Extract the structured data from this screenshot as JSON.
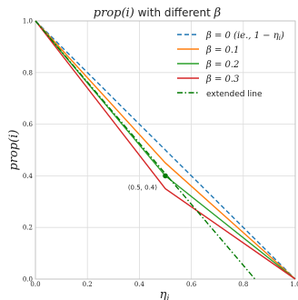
{
  "chart_data": {
    "type": "line",
    "title": "prop(i) with different β",
    "title_parts": {
      "left": "prop(i)",
      "middle": " with different ",
      "right": "β"
    },
    "xlabel": "η",
    "xlabel_sub": "i",
    "ylabel": "prop(i)",
    "xlim": [
      0.0,
      1.0
    ],
    "ylim": [
      0.0,
      1.0
    ],
    "xticks": [
      "0.0",
      "0.2",
      "0.4",
      "0.6",
      "0.8",
      "1.0"
    ],
    "yticks": [
      "0.0",
      "0.2",
      "0.4",
      "0.6",
      "0.8",
      "1.0"
    ],
    "grid": true,
    "legend_position": "top-right",
    "series": [
      {
        "name": "β = 0 (ie., 1 − ηᵢ)",
        "legend_parts": [
          "β = 0 (",
          "ie.",
          ", 1 − η",
          "i",
          ")"
        ],
        "color": "#1f77b4",
        "dash": "dashed",
        "x": [
          0.0,
          1.0
        ],
        "y": [
          1.0,
          0.0
        ]
      },
      {
        "name": "β = 0.1",
        "color": "#ff7f0e",
        "dash": "solid",
        "x": [
          0.0,
          0.5,
          1.0
        ],
        "y": [
          1.0,
          0.45,
          0.0
        ]
      },
      {
        "name": "β = 0.2",
        "color": "#2ca02c",
        "dash": "solid",
        "x": [
          0.0,
          0.5,
          1.0
        ],
        "y": [
          1.0,
          0.4,
          0.0
        ]
      },
      {
        "name": "β = 0.3",
        "color": "#d62728",
        "dash": "solid",
        "x": [
          0.0,
          0.5,
          1.0
        ],
        "y": [
          1.0,
          0.35,
          0.0
        ]
      },
      {
        "name": "extended line",
        "color": "#007a00",
        "dash": "dashdot",
        "x": [
          0.0,
          0.845
        ],
        "y": [
          1.0,
          0.0
        ]
      }
    ],
    "point": {
      "x": 0.5,
      "y": 0.4,
      "label": "(0.5, 0.4)",
      "color": "#007a00"
    }
  }
}
